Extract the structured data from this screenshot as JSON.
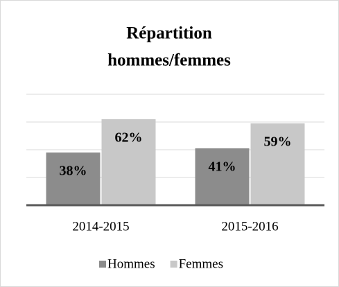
{
  "chart_data": {
    "type": "bar",
    "title_lines": [
      "Répartition",
      "hommes/femmes"
    ],
    "categories": [
      "2014-2015",
      "2015-2016"
    ],
    "series": [
      {
        "name": "Hommes",
        "color": "#8c8c8c",
        "values": [
          38,
          41
        ],
        "value_labels": [
          "38%",
          "41%"
        ]
      },
      {
        "name": "Femmes",
        "color": "#c8c8c8",
        "values": [
          62,
          59
        ],
        "value_labels": [
          "62%",
          "59%"
        ]
      }
    ],
    "ylim": [
      0,
      80
    ],
    "yticks": [
      0,
      20,
      40,
      60,
      80
    ],
    "grid": true,
    "legend": "bottom"
  }
}
